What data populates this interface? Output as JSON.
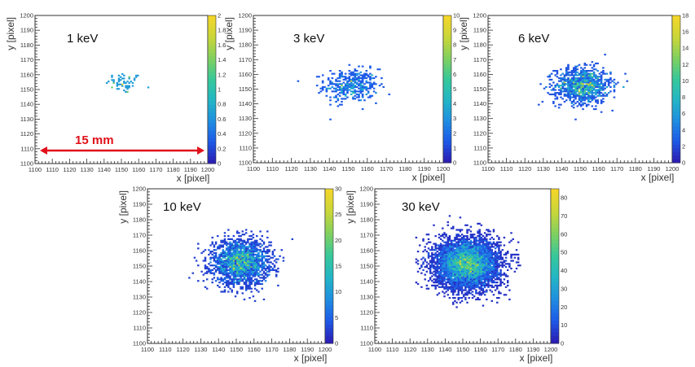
{
  "colorscale": [
    "#2a1fb4",
    "#1e5be8",
    "#1f8fe0",
    "#22b6c5",
    "#37c89a",
    "#7fd060",
    "#c7d63a",
    "#f2d62a"
  ],
  "scale_annotation": {
    "text": "15 mm",
    "color": "#e0101a"
  },
  "chart_data": [
    {
      "type": "heatmap",
      "energy_label": "1 keV",
      "xlabel": "x [pixel]",
      "ylabel": "y [pixel]",
      "xlim": [
        1100,
        1200
      ],
      "ylim": [
        1100,
        1200
      ],
      "xticks": [
        "1100",
        "1110",
        "1120",
        "1130",
        "1140",
        "1150",
        "1160",
        "1170",
        "1180",
        "1190",
        "1200"
      ],
      "yticks": [
        "1100",
        "1110",
        "1120",
        "1130",
        "1140",
        "1150",
        "1160",
        "1170",
        "1180",
        "1190",
        "1200"
      ],
      "colorbar": {
        "min": 0,
        "max": 2,
        "ticks": [
          "0",
          "0.2",
          "0.4",
          "0.6",
          "0.8",
          "1",
          "1.2",
          "1.4",
          "1.6",
          "1.8",
          "2"
        ]
      },
      "spot": {
        "center": [
          1151,
          1154
        ],
        "sigma": [
          5,
          3.5
        ],
        "count": 60,
        "peak": 2
      }
    },
    {
      "type": "heatmap",
      "energy_label": "3 keV",
      "xlabel": "x [pixel]",
      "ylabel": "y [pixel]",
      "xlim": [
        1100,
        1200
      ],
      "ylim": [
        1100,
        1200
      ],
      "xticks": [
        "1100",
        "1110",
        "1120",
        "1130",
        "1140",
        "1150",
        "1160",
        "1170",
        "1180",
        "1190",
        "1200"
      ],
      "yticks": [
        "1100",
        "1110",
        "1120",
        "1130",
        "1140",
        "1150",
        "1160",
        "1170",
        "1180",
        "1190",
        "1200"
      ],
      "colorbar": {
        "min": 0,
        "max": 10,
        "ticks": [
          "0",
          "1",
          "2",
          "3",
          "4",
          "5",
          "6",
          "7",
          "8",
          "9",
          "10"
        ]
      },
      "spot": {
        "center": [
          1151,
          1152
        ],
        "sigma": [
          7,
          5.5
        ],
        "count": 400,
        "peak": 10
      }
    },
    {
      "type": "heatmap",
      "energy_label": "6 keV",
      "xlabel": "x [pixel]",
      "ylabel": "y [pixel]",
      "xlim": [
        1100,
        1200
      ],
      "ylim": [
        1100,
        1200
      ],
      "xticks": [
        "1100",
        "1110",
        "1120",
        "1130",
        "1140",
        "1150",
        "1160",
        "1170",
        "1180",
        "1190",
        "1200"
      ],
      "yticks": [
        "1100",
        "1110",
        "1120",
        "1130",
        "1140",
        "1150",
        "1160",
        "1170",
        "1180",
        "1190",
        "1200"
      ],
      "colorbar": {
        "min": 0,
        "max": 18,
        "ticks": [
          "0",
          "2",
          "4",
          "6",
          "8",
          "10",
          "12",
          "14",
          "16",
          "18"
        ]
      },
      "spot": {
        "center": [
          1151,
          1152
        ],
        "sigma": [
          7.5,
          6
        ],
        "count": 1100,
        "peak": 18
      }
    },
    {
      "type": "heatmap",
      "energy_label": "10 keV",
      "xlabel": "x [pixel]",
      "ylabel": "y [pixel]",
      "xlim": [
        1100,
        1200
      ],
      "ylim": [
        1100,
        1200
      ],
      "xticks": [
        "1100",
        "1110",
        "1120",
        "1130",
        "1140",
        "1150",
        "1160",
        "1170",
        "1180",
        "1190",
        "1200"
      ],
      "yticks": [
        "1100",
        "1110",
        "1120",
        "1130",
        "1140",
        "1150",
        "1160",
        "1170",
        "1180",
        "1190",
        "1200"
      ],
      "colorbar": {
        "min": 0,
        "max": 30,
        "ticks": [
          "0",
          "5",
          "10",
          "15",
          "20",
          "25",
          "30"
        ]
      },
      "spot": {
        "center": [
          1152,
          1152
        ],
        "sigma": [
          8,
          7
        ],
        "count": 2200,
        "peak": 30
      }
    },
    {
      "type": "heatmap",
      "energy_label": "30 keV",
      "xlabel": "x [pixel]",
      "ylabel": "y [pixel]",
      "xlim": [
        1100,
        1200
      ],
      "ylim": [
        1100,
        1200
      ],
      "xticks": [
        "1100",
        "1110",
        "1120",
        "1130",
        "1140",
        "1150",
        "1160",
        "1170",
        "1180",
        "1190",
        "1200"
      ],
      "yticks": [
        "1100",
        "1110",
        "1120",
        "1130",
        "1140",
        "1150",
        "1160",
        "1170",
        "1180",
        "1190",
        "1200"
      ],
      "colorbar": {
        "min": 0,
        "max": 85,
        "ticks": [
          "0",
          "10",
          "20",
          "30",
          "40",
          "50",
          "60",
          "70",
          "80"
        ]
      },
      "spot": {
        "center": [
          1152,
          1151
        ],
        "sigma": [
          9,
          8
        ],
        "count": 6000,
        "peak": 85
      }
    }
  ]
}
